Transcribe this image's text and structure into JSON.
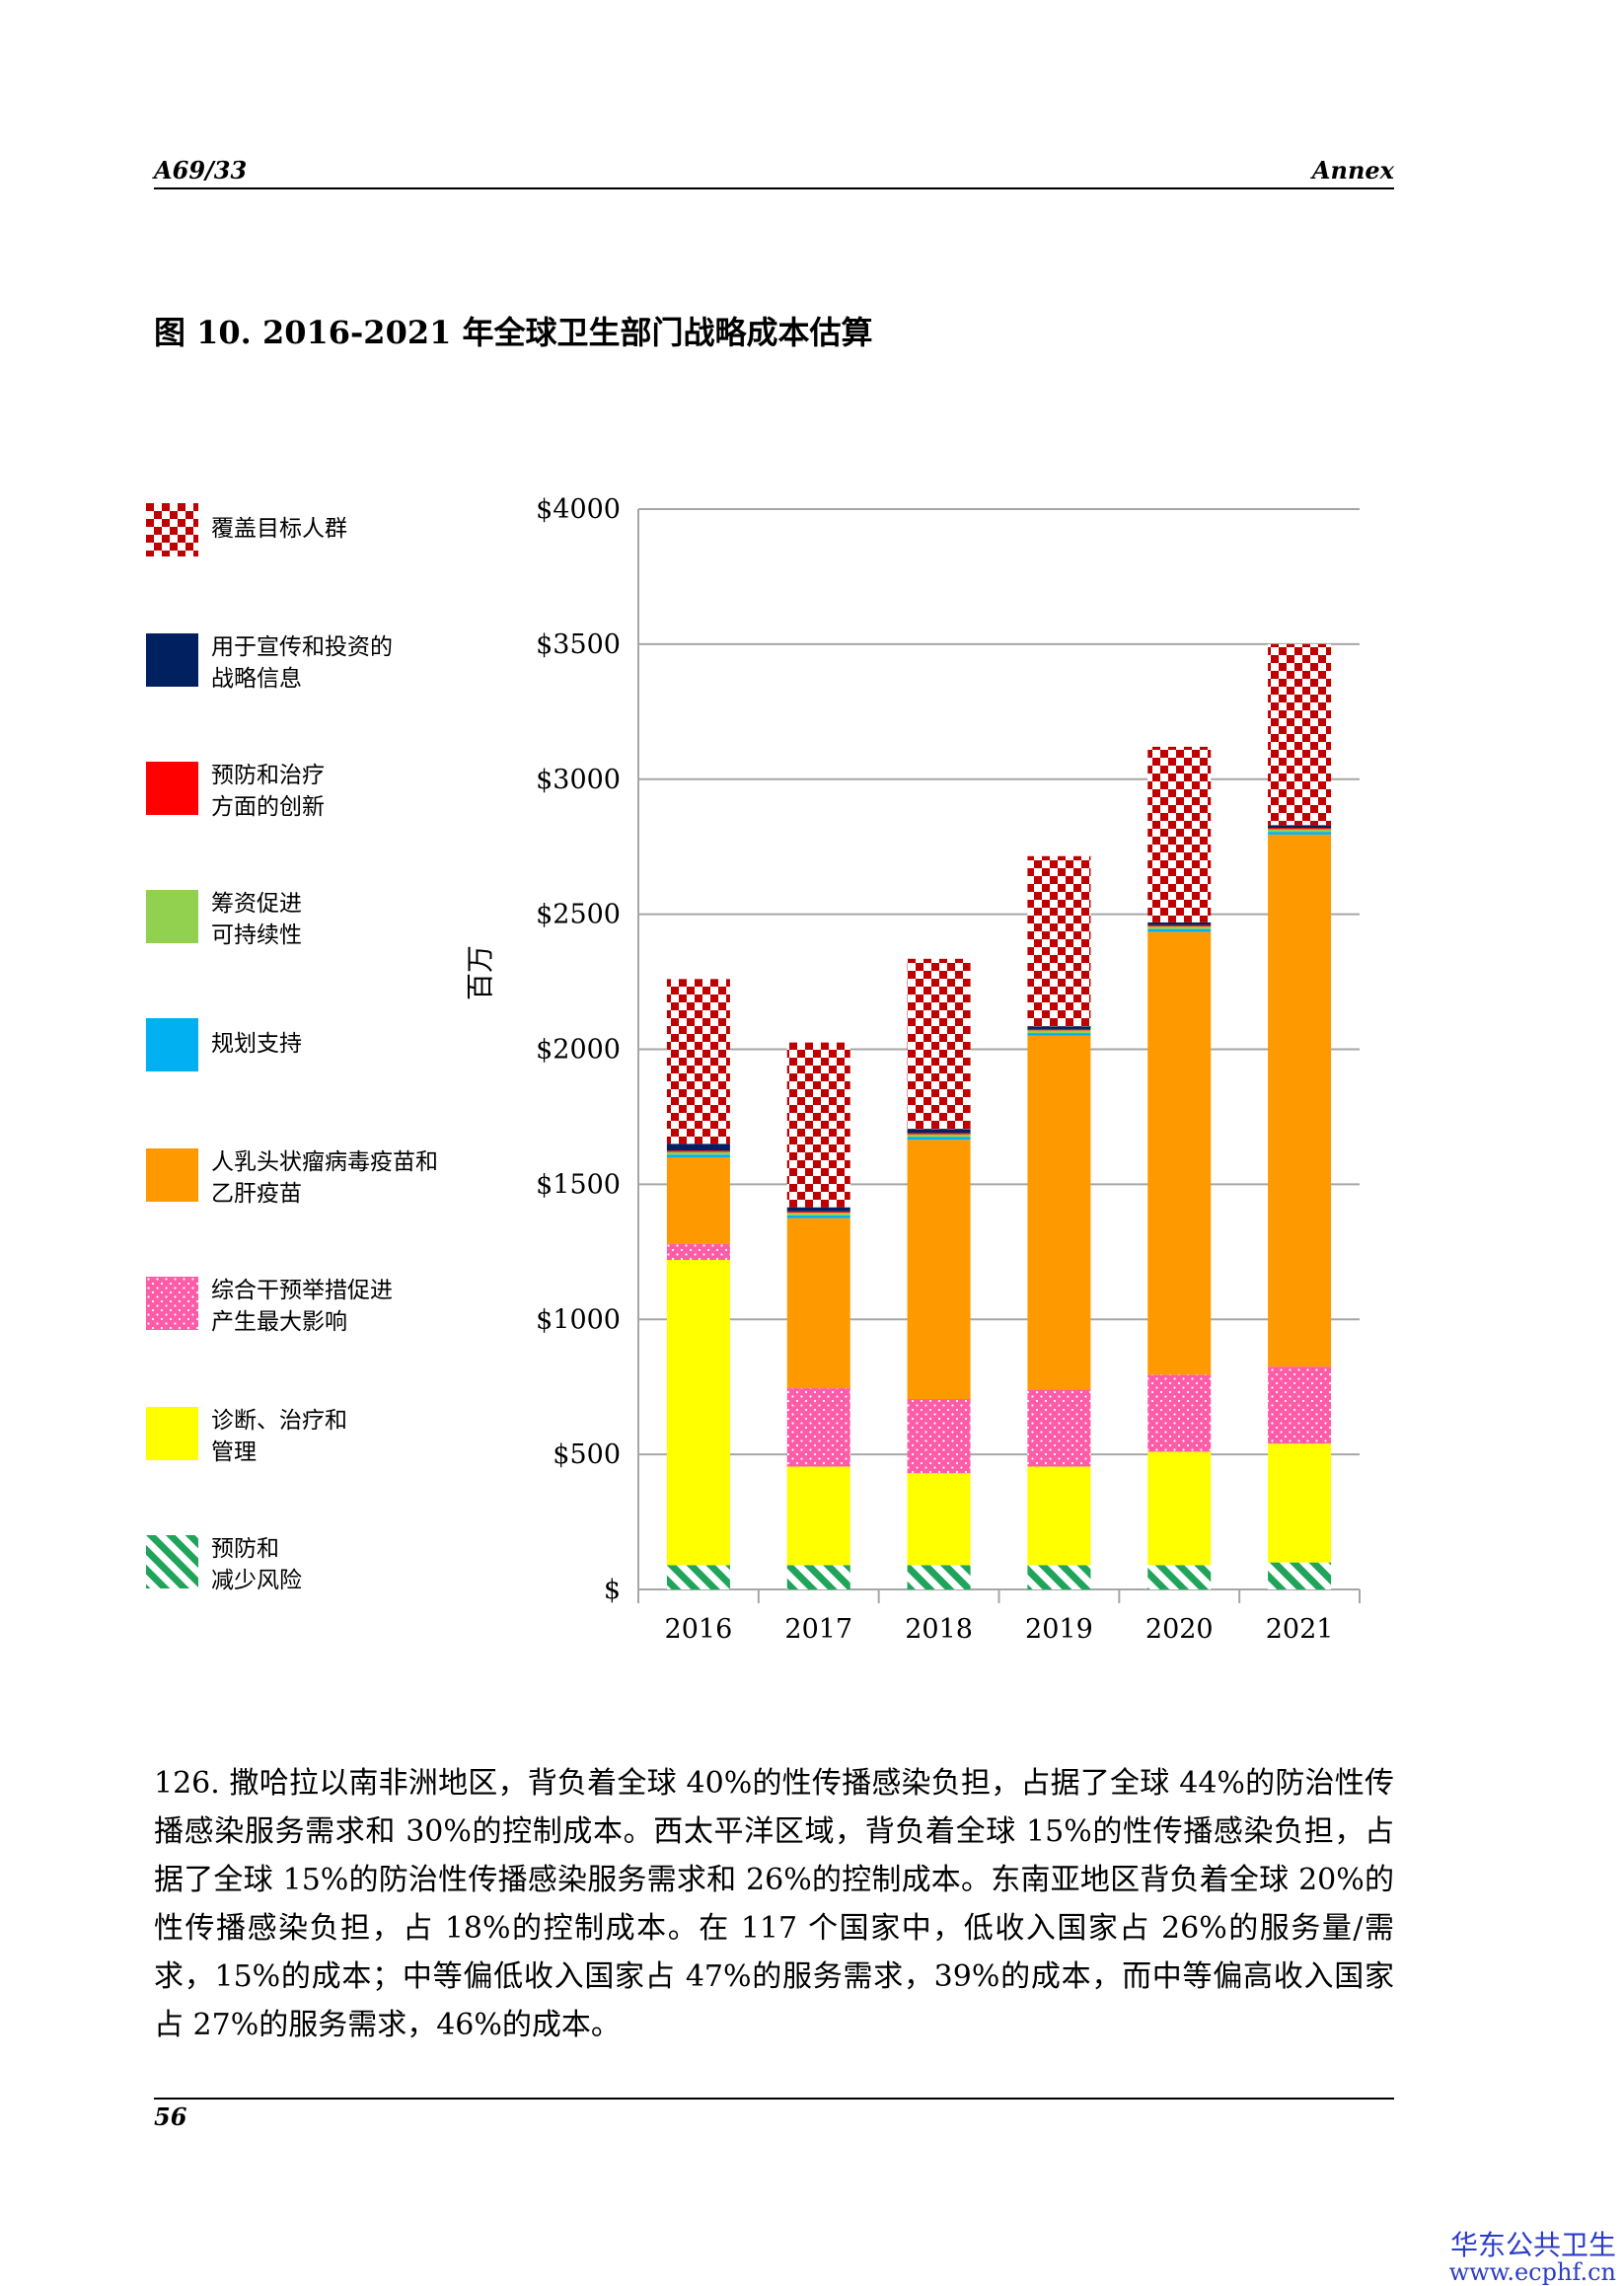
{
  "header": {
    "doc_code": "A69/33",
    "section": "Annex"
  },
  "figure_title": "图 10. 2016-2021 年全球卫生部门战略成本估算",
  "chart_data": {
    "type": "bar",
    "stacked": true,
    "categories": [
      "2016",
      "2017",
      "2018",
      "2019",
      "2020",
      "2021"
    ],
    "ylabel": "百万",
    "ylim": [
      0,
      4000
    ],
    "yticks": [
      0,
      500,
      1000,
      1500,
      2000,
      2500,
      3000,
      3500,
      4000
    ],
    "ytick_labels": [
      "$",
      "$500",
      "$1000",
      "$1500",
      "$2000",
      "$2500",
      "$3000",
      "$3500",
      "$4000"
    ],
    "grid": true,
    "legend_position": "left",
    "series": [
      {
        "name": "预防和减少风险",
        "legend_lines": [
          "预防和",
          "减少风险"
        ],
        "pattern": "diagonal-stripes",
        "color": "#1fa45a",
        "values": [
          90,
          90,
          90,
          90,
          90,
          100
        ]
      },
      {
        "name": "诊断、治疗和管理",
        "legend_lines": [
          "诊断、治疗和",
          "管理"
        ],
        "pattern": "solid",
        "color": "#ffff00",
        "values": [
          1130,
          365,
          340,
          365,
          420,
          440
        ]
      },
      {
        "name": "综合干预举措促进产生最大影响",
        "legend_lines": [
          "综合干预举措促进",
          "产生最大影响"
        ],
        "pattern": "dots",
        "color": "#ff5ca8",
        "values": [
          60,
          290,
          275,
          285,
          285,
          285
        ]
      },
      {
        "name": "人乳头状瘤病毒疫苗和乙肝疫苗",
        "legend_lines": [
          "人乳头状瘤病毒疫苗和",
          "乙肝疫苗"
        ],
        "pattern": "solid",
        "color": "#ff9900",
        "values": [
          320,
          630,
          960,
          1310,
          1640,
          1970
        ]
      },
      {
        "name": "规划支持",
        "legend_lines": [
          "规划支持"
        ],
        "pattern": "solid",
        "color": "#00b0f0",
        "values": [
          10,
          10,
          10,
          10,
          10,
          10
        ]
      },
      {
        "name": "筹资促进可持续性",
        "legend_lines": [
          "筹资促进",
          "可持续性"
        ],
        "pattern": "solid",
        "color": "#92d050",
        "values": [
          10,
          10,
          10,
          10,
          10,
          10
        ]
      },
      {
        "name": "预防和治疗方面的创新",
        "legend_lines": [
          "预防和治疗",
          "方面的创新"
        ],
        "pattern": "solid",
        "color": "#ff0000",
        "values": [
          5,
          5,
          5,
          5,
          5,
          5
        ]
      },
      {
        "name": "用于宣传和投资的战略信息",
        "legend_lines": [
          "用于宣传和投资的",
          "战略信息"
        ],
        "pattern": "solid",
        "color": "#002060",
        "values": [
          25,
          15,
          15,
          10,
          10,
          10
        ]
      },
      {
        "name": "覆盖目标人群",
        "legend_lines": [
          "覆盖目标人群"
        ],
        "pattern": "checker",
        "color": "#c00000",
        "values": [
          610,
          610,
          630,
          630,
          650,
          670
        ]
      }
    ]
  },
  "paragraph": "126. 撒哈拉以南非洲地区，背负着全球 40%的性传播感染负担，占据了全球 44%的防治性传播感染服务需求和 30%的控制成本。西太平洋区域，背负着全球 15%的性传播感染负担，占据了全球 15%的防治性传播感染服务需求和 26%的控制成本。东南亚地区背负着全球 20%的性传播感染负担，占 18%的控制成本。在 117 个国家中，低收入国家占 26%的服务量/需求，15%的成本；中等偏低收入国家占 47%的服务需求，39%的成本，而中等偏高收入国家占 27%的服务需求，46%的成本。",
  "footer": {
    "page_number": "56"
  },
  "watermark": {
    "name": "华东公共卫生",
    "url": "www.ecphf.cn"
  }
}
